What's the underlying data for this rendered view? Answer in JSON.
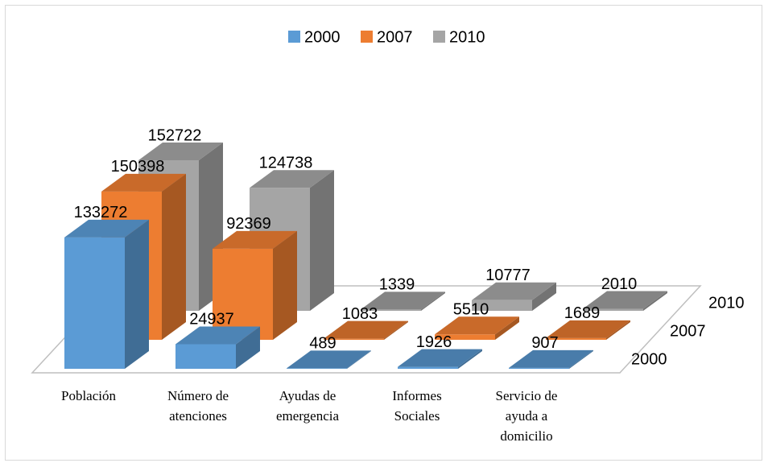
{
  "chart_data": {
    "type": "bar",
    "categories": [
      "Población",
      "Número de atenciones",
      "Ayudas de emergencia",
      "Informes Sociales",
      "Servicio de ayuda a domicilio"
    ],
    "series": [
      {
        "name": "2000",
        "color": "#5b9bd5",
        "values": [
          133272,
          24937,
          489,
          1926,
          907
        ]
      },
      {
        "name": "2007",
        "color": "#ed7d31",
        "values": [
          150398,
          92369,
          1083,
          5510,
          1689
        ]
      },
      {
        "name": "2010",
        "color": "#a5a5a5",
        "values": [
          152722,
          124738,
          1339,
          10777,
          2010
        ]
      }
    ],
    "legend": "top"
  }
}
